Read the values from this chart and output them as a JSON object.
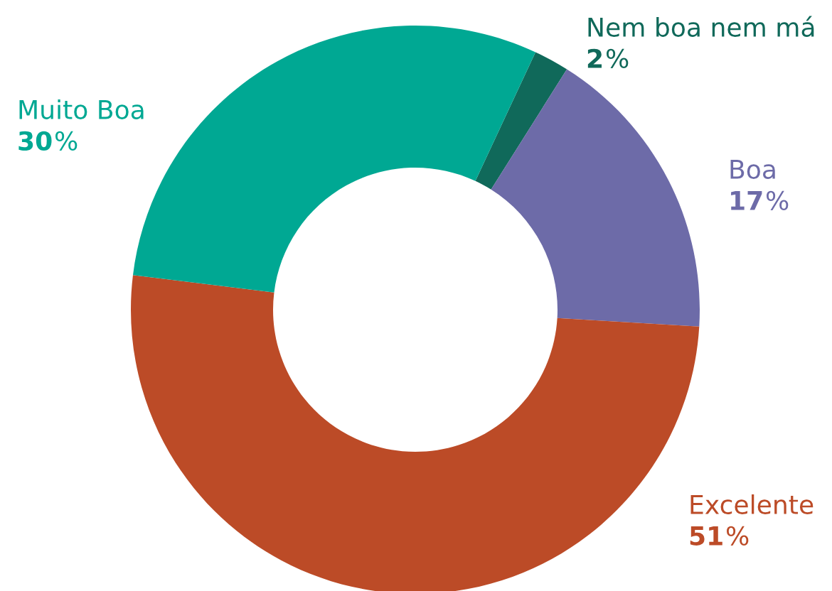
{
  "chart_data": {
    "type": "donut",
    "categories": [
      "Nem boa nem má",
      "Boa",
      "Excelente",
      "Muito Boa"
    ],
    "values": [
      2,
      17,
      51,
      30
    ],
    "colors": [
      "#10695a",
      "#6d6ba8",
      "#bc4b27",
      "#00a893"
    ],
    "value_labels": [
      "2%",
      "17%",
      "51%",
      "30%"
    ],
    "legend": false
  }
}
